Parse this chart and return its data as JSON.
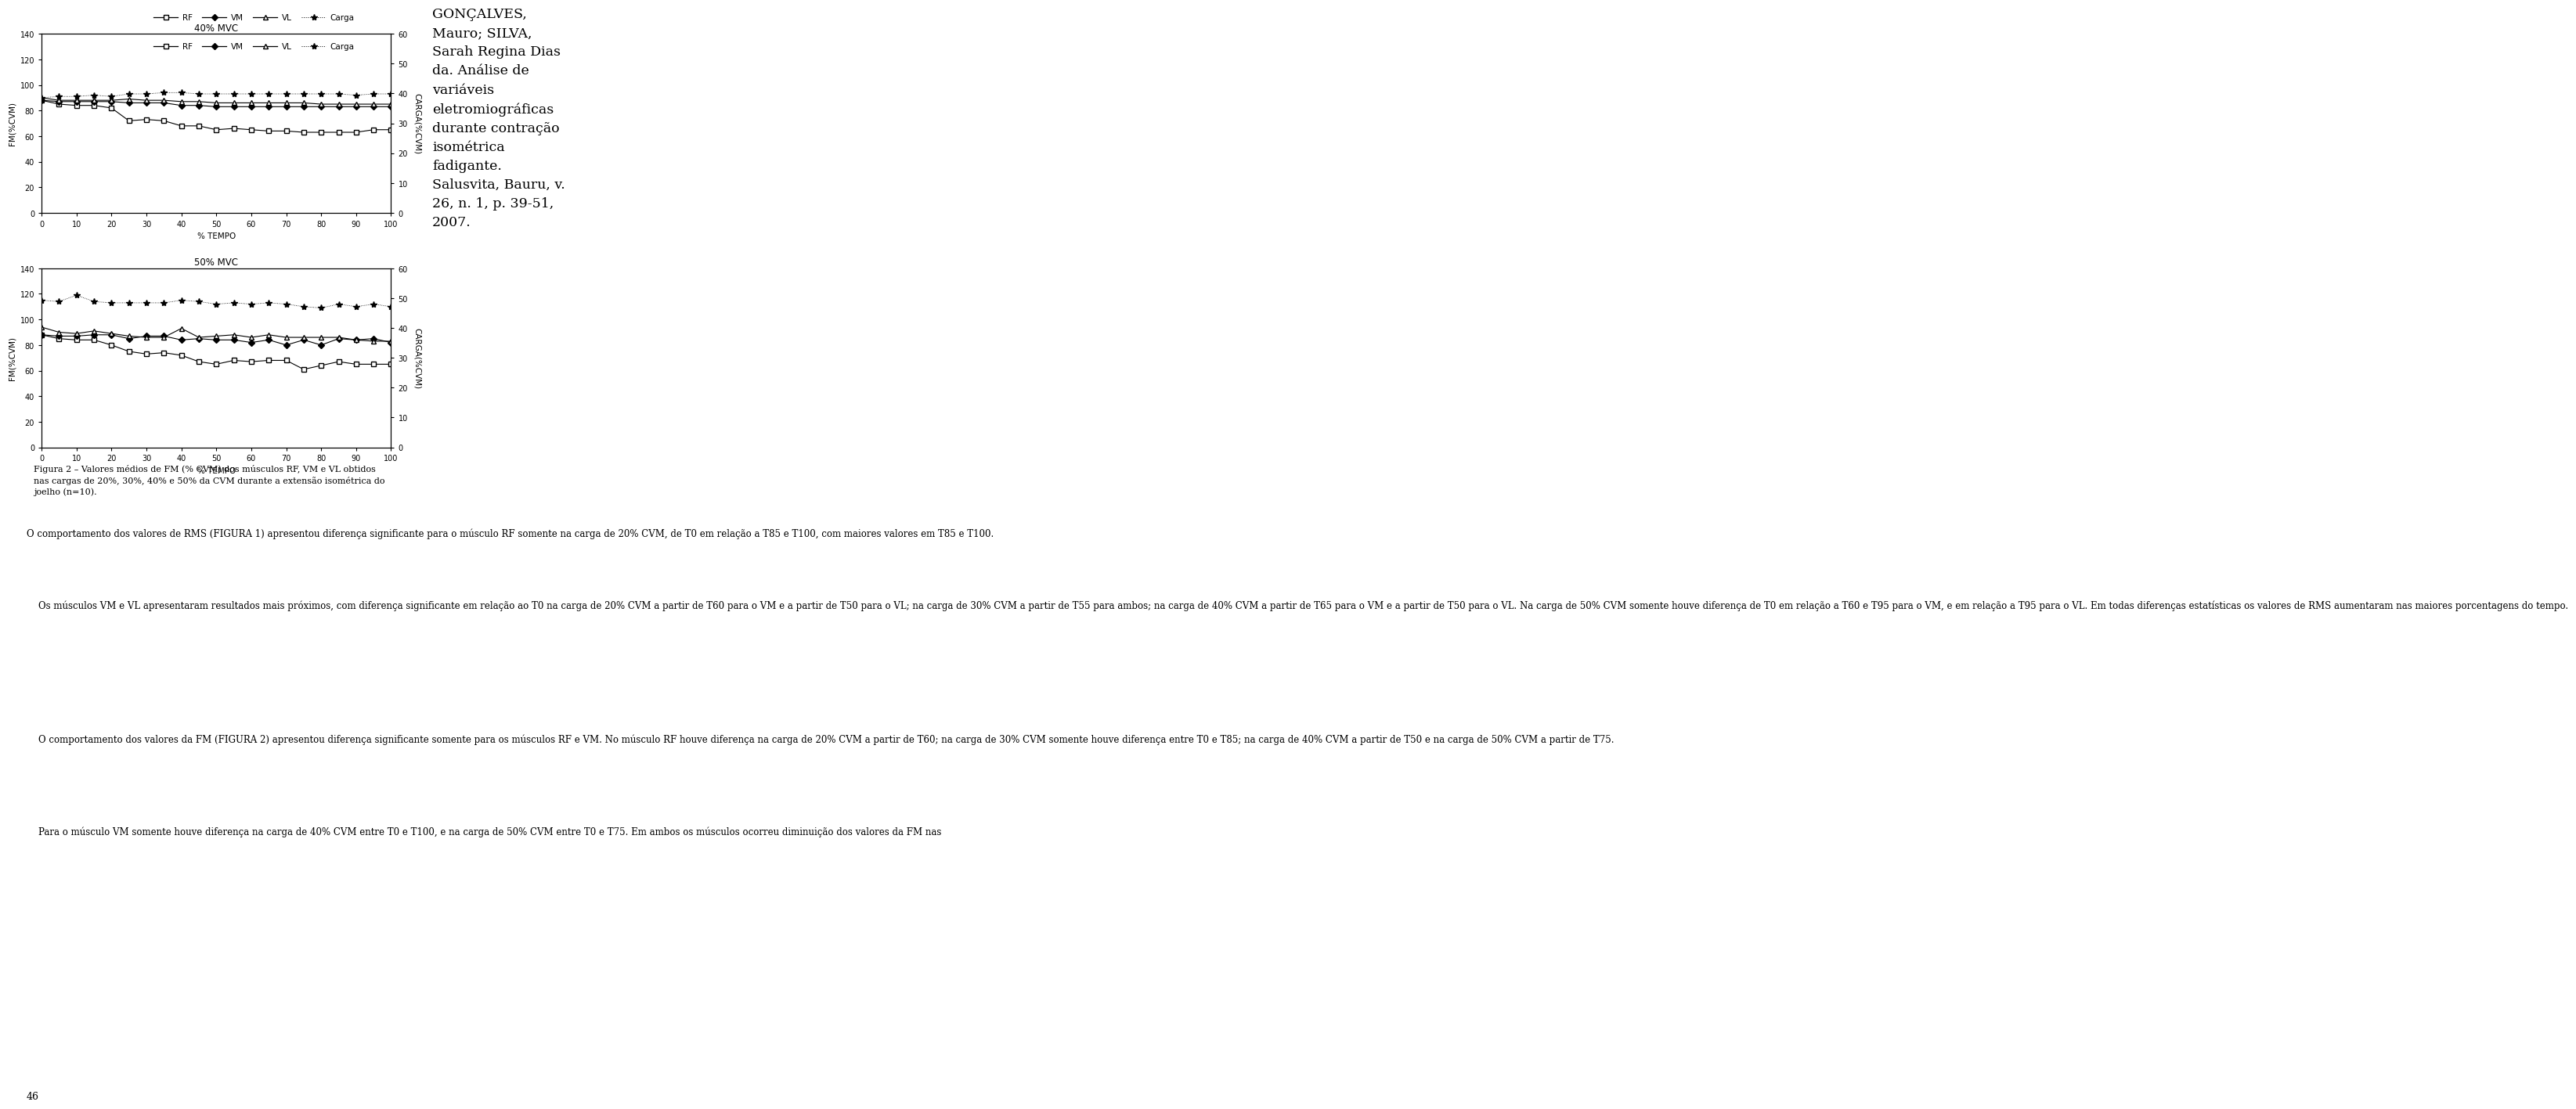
{
  "fig_width": 9.6,
  "fig_height": 14.76,
  "background_color": "#ffffff",
  "subplot1_title": "40% MVC",
  "subplot2_title": "50% MVC",
  "xlabel": "% TEMPO",
  "ylabel_left": "FM(%CVM)",
  "ylabel_right": "CARGA(%CVM)",
  "ylim_left": [
    0,
    140
  ],
  "ylim_right": [
    0,
    60
  ],
  "xlim": [
    0,
    100
  ],
  "x_ticks": [
    0,
    10,
    20,
    30,
    40,
    50,
    60,
    70,
    80,
    90,
    100
  ],
  "y_ticks_left": [
    0,
    20,
    40,
    60,
    80,
    100,
    120,
    140
  ],
  "y_ticks_right": [
    0,
    10,
    20,
    30,
    40,
    50,
    60
  ],
  "x_values": [
    0,
    5,
    10,
    15,
    20,
    25,
    30,
    35,
    40,
    45,
    50,
    55,
    60,
    65,
    70,
    75,
    80,
    85,
    90,
    95,
    100
  ],
  "plot1": {
    "RF": [
      88,
      85,
      84,
      84,
      82,
      72,
      73,
      72,
      68,
      68,
      65,
      66,
      65,
      64,
      64,
      63,
      63,
      63,
      63,
      65,
      65
    ],
    "VM": [
      88,
      87,
      87,
      87,
      87,
      86,
      86,
      86,
      84,
      84,
      83,
      83,
      83,
      83,
      83,
      83,
      83,
      83,
      83,
      83,
      83
    ],
    "VL": [
      90,
      88,
      88,
      88,
      88,
      89,
      88,
      88,
      87,
      87,
      86,
      86,
      86,
      86,
      86,
      86,
      85,
      85,
      85,
      85,
      85
    ],
    "Carga": [
      90,
      91,
      91,
      92,
      91,
      93,
      93,
      94,
      94,
      93,
      93,
      93,
      93,
      93,
      93,
      93,
      93,
      93,
      92,
      93,
      93
    ]
  },
  "plot2": {
    "RF": [
      88,
      85,
      84,
      84,
      80,
      75,
      73,
      74,
      72,
      67,
      65,
      68,
      67,
      68,
      68,
      61,
      64,
      67,
      65,
      65,
      65
    ],
    "VM": [
      88,
      87,
      87,
      88,
      88,
      85,
      87,
      87,
      84,
      85,
      84,
      84,
      82,
      84,
      80,
      84,
      80,
      85,
      84,
      85,
      82
    ],
    "VL": [
      94,
      90,
      89,
      91,
      89,
      87,
      86,
      86,
      93,
      86,
      87,
      88,
      86,
      88,
      86,
      86,
      86,
      86,
      84,
      83,
      83
    ],
    "Carga": [
      115,
      114,
      119,
      114,
      113,
      113,
      113,
      113,
      115,
      114,
      112,
      113,
      112,
      113,
      112,
      110,
      109,
      112,
      110,
      112,
      110
    ]
  },
  "text_block": "GONÇALVES,\nMauro; SILVA,\nSarah Regina Dias\nda. Análise de\nvariáveis\neletromiográficas\ndurante contração\nisométrica\nfadigante.\nSalusvita, Bauru, v.\n26, n. 1, p. 39-51,\n2007.",
  "caption": "Figura 2 – Valores médios de FM (% CVM) dos músculos RF, VM e VL obtidos\nnas cargas de 20%, 30%, 40% e 50% da CVM durante a extensão isométrica do\njoelho (n=10).",
  "page_number": "46",
  "body_text_para1": "O comportamento dos valores de RMS (FIGURA 1) apresentou diferença significante para o músculo RF somente na carga de 20% CVM, de T0 em relação a T85 e T100, com maiores valores em T85 e T100.",
  "body_text_para2": "    Os músculos VM e VL apresentaram resultados mais próximos, com diferença significante em relação ao T0 na carga de 20% CVM a partir de T60 para o VM e a partir de T50 para o VL; na carga de 30% CVM a partir de T55 para ambos; na carga de 40% CVM a partir de T65 para o VM e a partir de T50 para o VL. Na carga de 50% CVM somente houve diferença de T0 em relação a T60 e T95 para o VM, e em relação a T95 para o VL. Em todas diferenças estatísticas os valores de RMS aumentaram nas maiores porcentagens do tempo.",
  "body_text_para3": "    O comportamento dos valores da FM (FIGURA 2) apresentou diferença significante somente para os músculos RF e VM. No músculo RF houve diferença na carga de 20% CVM a partir de T60; na carga de 30% CVM somente houve diferença entre T0 e T85; na carga de 40% CVM a partir de T50 e na carga de 50% CVM a partir de T75.",
  "body_text_para4": "    Para o músculo VM somente houve diferença na carga de 40% CVM entre T0 e T100, e na carga de 50% CVM entre T0 e T75. Em ambos os músculos ocorreu diminuição dos valores da FM nas"
}
